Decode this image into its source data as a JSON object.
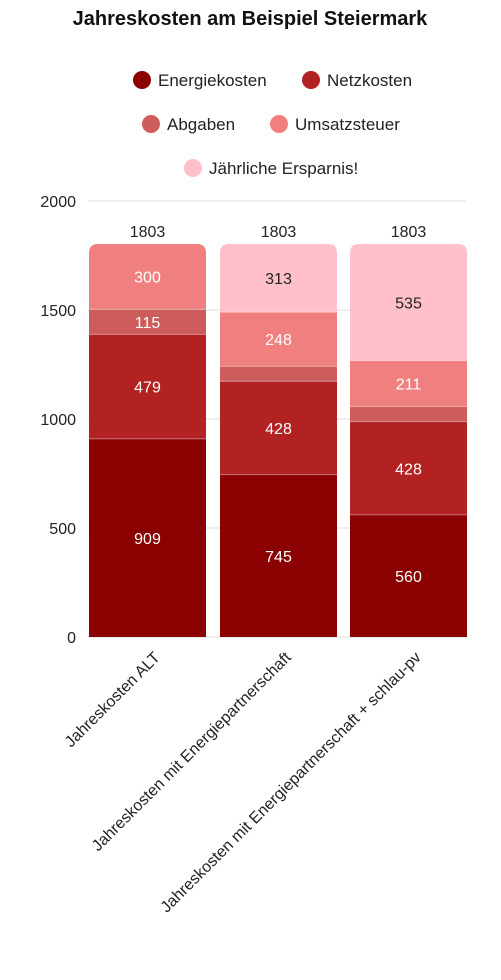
{
  "chart_data": {
    "type": "bar",
    "stacked": true,
    "title": "Jahreskosten am Beispiel Steiermark",
    "legend_position": "top",
    "categories": [
      "Jahreskosten ALT",
      "Jahreskosten mit Energiepartnerschaft",
      "Jahreskosten mit Energiepartnerschaft + schlau-pv"
    ],
    "series": [
      {
        "name": "Energiekosten",
        "values": [
          909,
          745,
          560
        ],
        "color": "#8b0000",
        "label_color": "#ffffff",
        "labels": [
          "909",
          "745",
          "560"
        ]
      },
      {
        "name": "Netzkosten",
        "values": [
          479,
          428,
          428
        ],
        "color": "#b22222",
        "label_color": "#ffffff",
        "labels": [
          "479",
          "428",
          "428"
        ]
      },
      {
        "name": "Abgaben",
        "values": [
          115,
          69,
          69
        ],
        "color": "#cd5c5c",
        "label_color": "#ffffff",
        "labels": [
          "115",
          "",
          ""
        ]
      },
      {
        "name": "Umsatzsteuer",
        "values": [
          300,
          248,
          211
        ],
        "color": "#f08080",
        "label_color": "#ffffff",
        "labels": [
          "300",
          "248",
          "211"
        ]
      },
      {
        "name": "Jährliche Ersparnis!",
        "values": [
          0,
          313,
          535
        ],
        "color": "#ffc0cb",
        "label_color": "#222222",
        "labels": [
          "",
          "313",
          "535"
        ]
      }
    ],
    "totals": [
      1803,
      1803,
      1803
    ],
    "ylim": [
      0,
      2000
    ],
    "yticks": [
      0,
      500,
      1000,
      1500,
      2000
    ],
    "ytick_labels": [
      "0",
      "500",
      "1000",
      "1500",
      "2000"
    ],
    "grid": true
  }
}
